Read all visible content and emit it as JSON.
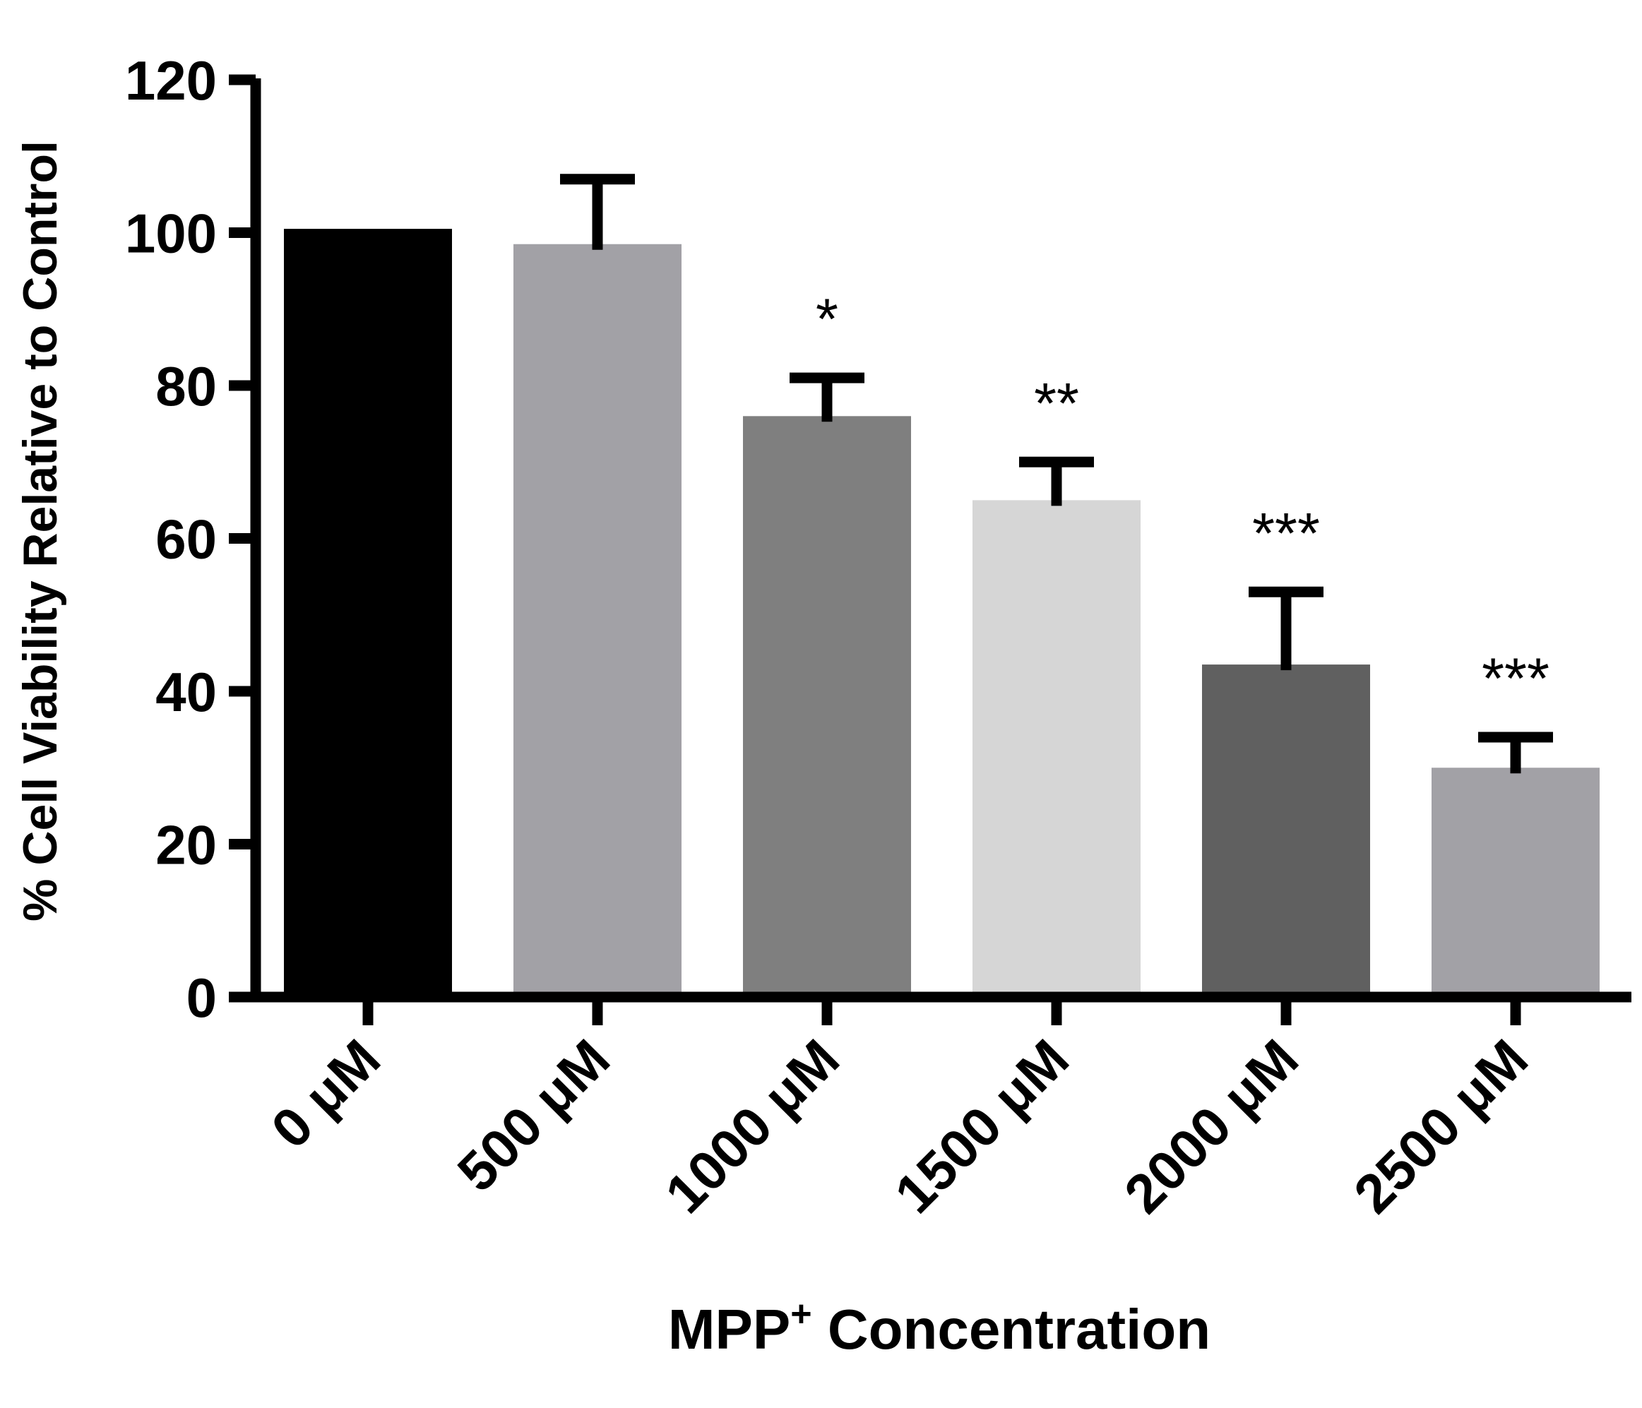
{
  "chart_data": {
    "type": "bar",
    "title": "",
    "xlabel": {
      "main": "MPP",
      "superscript": "+",
      "rest": " Concentration"
    },
    "ylabel": "% Cell Viability Relative to Control",
    "ylim": [
      0,
      120
    ],
    "yticks": [
      "0",
      "20",
      "40",
      "60",
      "80",
      "100",
      "120"
    ],
    "grid": false,
    "categories": [
      "0 μM",
      "500 μM",
      "1000 μM",
      "1500 μM",
      "2000 μM",
      "2500 μM"
    ],
    "values": [
      100.5,
      98.5,
      76,
      65,
      43.5,
      30
    ],
    "error_upper": [
      0,
      8.5,
      5,
      5,
      9.5,
      4
    ],
    "significance": [
      "",
      "",
      "*",
      "**",
      "***",
      "***"
    ],
    "colors": [
      "#000000",
      "#a2a1a6",
      "#7f7f7f",
      "#d6d6d6",
      "#606060",
      "#a2a1a6"
    ]
  }
}
